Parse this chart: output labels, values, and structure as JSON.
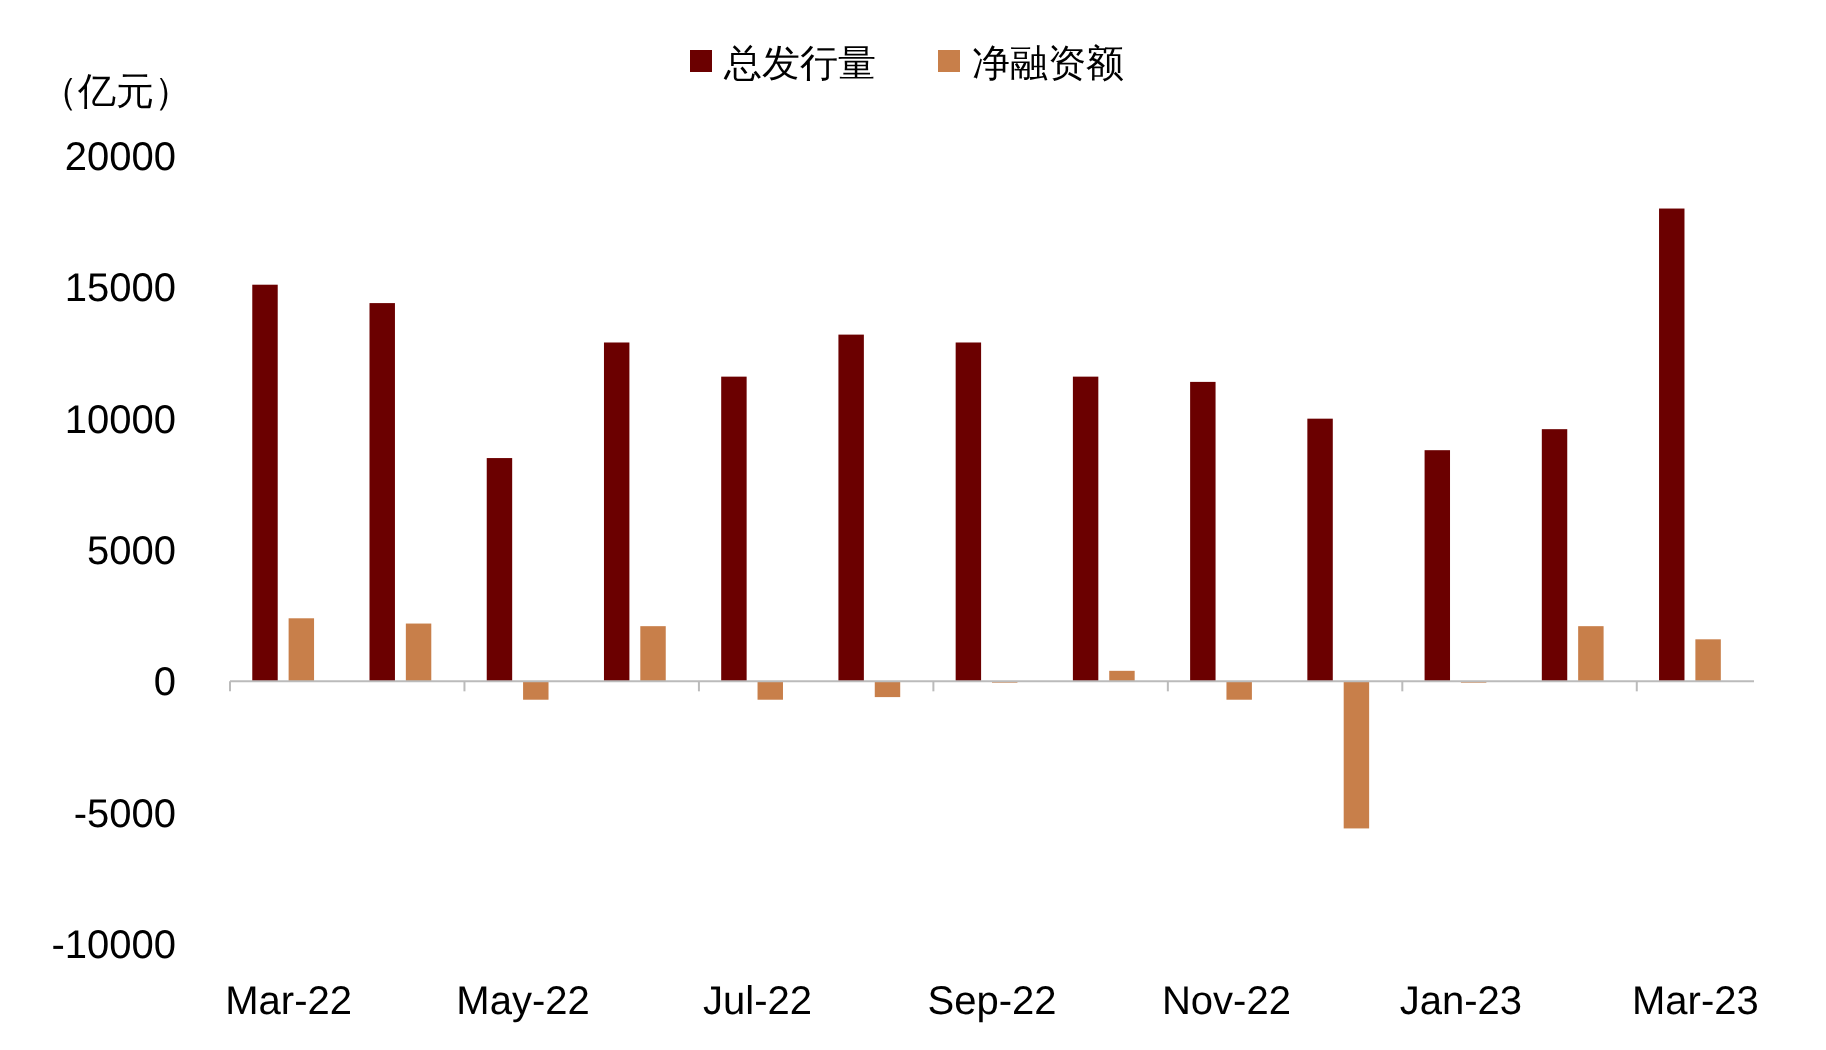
{
  "chart_data": {
    "type": "bar",
    "ylabel": "（亿元）",
    "categories": [
      "Mar-22",
      null,
      "May-22",
      null,
      "Jul-22",
      null,
      "Sep-22",
      null,
      "Nov-22",
      null,
      "Jan-23",
      null,
      "Mar-23"
    ],
    "series": [
      {
        "name": "总发行量",
        "color": "#6b0000",
        "values": [
          15100,
          14400,
          8500,
          12900,
          11600,
          13200,
          12900,
          11600,
          11400,
          10000,
          8800,
          9600,
          18000
        ]
      },
      {
        "name": "净融资额",
        "color": "#c87f4a",
        "values": [
          2400,
          2200,
          -700,
          2100,
          -700,
          -600,
          -50,
          400,
          -700,
          -5600,
          -50,
          2100,
          1600
        ]
      }
    ],
    "ylim": [
      -10000,
      20000
    ],
    "yticks": [
      -10000,
      -5000,
      0,
      5000,
      10000,
      15000,
      20000
    ],
    "legend": "top"
  }
}
